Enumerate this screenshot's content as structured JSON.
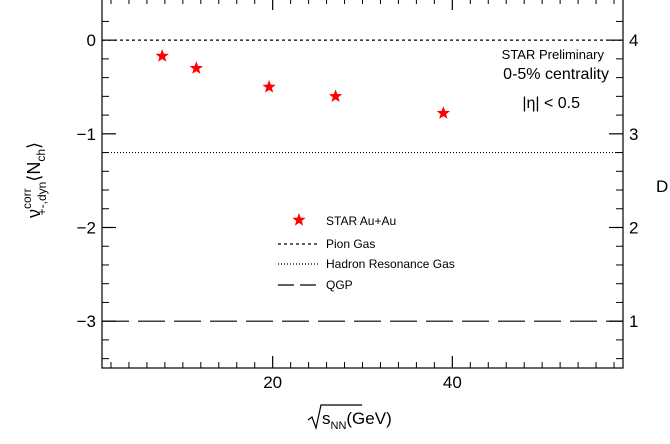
{
  "chart_data": {
    "type": "scatter",
    "xlabel": "√s_NN(GeV)",
    "xlabel_parts": {
      "main": "s",
      "sub": "NN",
      "unit": "(GeV)"
    },
    "ylabel": "ν^corr_{+-,dyn}⟨N_ch⟩",
    "ylabel_parts": {
      "nu": "ν",
      "sup": "corr",
      "sub": "+-,dyn",
      "lang": "⟨",
      "n": "N",
      "nsub": "ch",
      "rang": "⟩"
    },
    "right_axis_label": "D",
    "xlim": [
      1,
      59
    ],
    "ylim": [
      -3.5,
      0.45
    ],
    "right_axis_range": [
      0.5,
      4.45
    ],
    "x_ticks": [
      20,
      40
    ],
    "y_ticks": [
      -3,
      -2,
      -1,
      0
    ],
    "right_ticks": [
      1,
      2,
      3,
      4
    ],
    "x_tick_labels": [
      "20",
      "40"
    ],
    "y_tick_labels": [
      "−3",
      "−2",
      "−1",
      "0"
    ],
    "right_tick_labels": [
      "1",
      "2",
      "3",
      "4"
    ],
    "series": [
      {
        "name": "STAR Au+Au",
        "marker": "star",
        "color": "#ff0000",
        "x": [
          7.7,
          11.5,
          19.6,
          27,
          39
        ],
        "y": [
          -0.17,
          -0.3,
          -0.5,
          -0.6,
          -0.78
        ]
      }
    ],
    "reference_lines": [
      {
        "name": "Pion Gas",
        "y": 0,
        "style": "dashed"
      },
      {
        "name": "Hadron Resonance Gas",
        "y": -1.2,
        "style": "dotted"
      },
      {
        "name": "QGP",
        "y": -3.0,
        "style": "longdash"
      }
    ],
    "annotations": {
      "preliminary": "STAR Preliminary",
      "centrality": "0-5% centrality",
      "eta_cut": "|η| < 0.5"
    },
    "legend_placement": "center-left"
  }
}
